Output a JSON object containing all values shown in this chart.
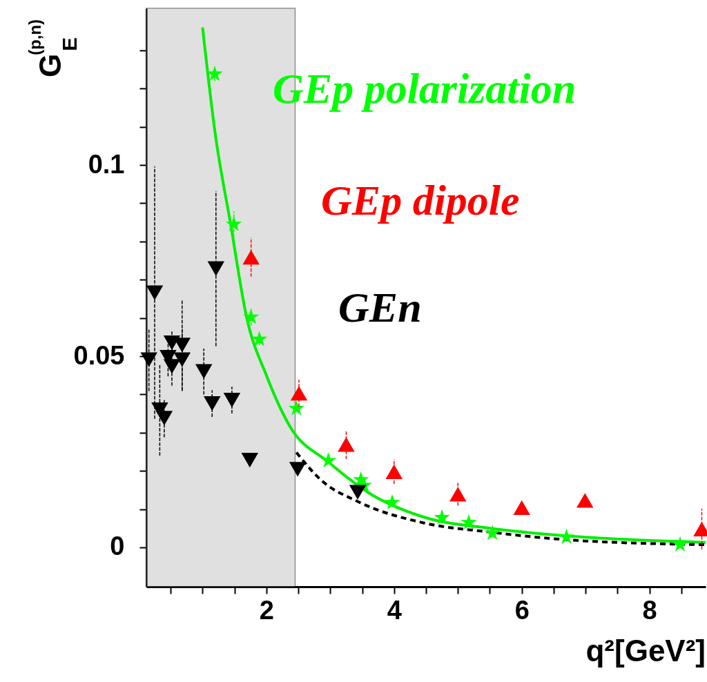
{
  "chart_data": {
    "type": "scatter",
    "xlabel": "q²[GeV²]",
    "ylabel": "G$_{E}$$^{(p,n)}$",
    "legend": "top",
    "grid": false,
    "xlim": [
      0.12,
      8.88
    ],
    "ylim": [
      -0.0103,
      0.141
    ],
    "xticks": [
      {
        "value": 0.5,
        "label": null
      },
      {
        "value": 1,
        "label": null
      },
      {
        "value": 1.5,
        "label": null
      },
      2,
      {
        "value": 2.5,
        "label": null
      },
      {
        "value": 3,
        "label": null
      },
      {
        "value": 3.5,
        "label": null
      },
      4,
      {
        "value": 4.5,
        "label": null
      },
      {
        "value": 5,
        "label": null
      },
      {
        "value": 5.5,
        "label": null
      },
      6,
      {
        "value": 6.5,
        "label": null
      },
      {
        "value": 7,
        "label": null
      },
      {
        "value": 7.5,
        "label": null
      },
      8,
      {
        "value": 8.5,
        "label": null
      }
    ],
    "yticks": [
      0,
      {
        "value": 0.01,
        "label": null
      },
      {
        "value": 0.02,
        "label": null
      },
      {
        "value": 0.03,
        "label": null
      },
      {
        "value": 0.04,
        "label": null
      },
      0.05,
      {
        "value": 0.06,
        "label": null
      },
      {
        "value": 0.07,
        "label": null
      },
      {
        "value": 0.08,
        "label": null
      },
      {
        "value": 0.09,
        "label": null
      },
      0.1,
      {
        "value": 0.11,
        "label": null
      },
      {
        "value": 0.12,
        "label": null
      },
      {
        "value": 0.13,
        "label": null
      }
    ],
    "bands": [
      {
        "axis": "x",
        "from": 0.12,
        "to": 2.45,
        "color": "#c8c8c8"
      }
    ],
    "series": [
      {
        "name": "GEp polarization",
        "marker": "star",
        "color": "#00ff00",
        "x": [
          1.19,
          1.49,
          1.76,
          1.89,
          2.47,
          2.97,
          3.48,
          3.53,
          3.97,
          4.75,
          5.17,
          5.54,
          6.7,
          8.48
        ],
        "values": [
          0.1238,
          0.0845,
          0.0602,
          0.0544,
          0.0363,
          0.0227,
          0.0177,
          0.0162,
          0.0117,
          0.0078,
          0.0065,
          0.0037,
          0.0027,
          0.0007
        ],
        "errors": [
          0.0019,
          0.0034,
          0.0022,
          0.0015,
          null,
          null,
          null,
          null,
          null,
          null,
          null,
          null,
          null,
          null
        ]
      },
      {
        "name": "GEp dipole",
        "marker": "triangle",
        "color": "#ff0000",
        "x": [
          1.76,
          2.51,
          3.25,
          4.0,
          5.0,
          6.0,
          6.99,
          8.82
        ],
        "values": [
          0.0759,
          0.0403,
          0.0269,
          0.0198,
          0.0139,
          0.0104,
          0.0123,
          0.0048
        ],
        "errors": [
          0.0051,
          0.0035,
          0.0038,
          0.0032,
          0.003,
          null,
          null,
          0.0053
        ]
      },
      {
        "name": "GEn",
        "marker": "triangle-down",
        "color": "#000000",
        "x": [
          0.16,
          0.25,
          0.33,
          0.4,
          0.46,
          0.52,
          0.52,
          0.68,
          0.68,
          1.02,
          1.15,
          1.21,
          1.46,
          1.74,
          2.49,
          3.43
        ],
        "values": [
          0.0491,
          0.0666,
          0.036,
          0.0338,
          0.0497,
          0.0535,
          0.0473,
          0.0529,
          0.0491,
          0.046,
          0.0376,
          0.0729,
          0.0385,
          0.0228,
          0.0204,
          0.0144
        ],
        "errors": [
          0.0082,
          0.033,
          0.012,
          0.005,
          0.005,
          0.003,
          0.005,
          0.012,
          0.008,
          0.006,
          0.0035,
          0.0203,
          0.0035,
          null,
          null,
          null
        ]
      },
      {
        "type": "line",
        "line_style": "solid",
        "color": "#00ee00",
        "x": [
          1.0,
          1.2,
          1.44,
          1.69,
          2.0,
          2.37,
          2.98,
          3.59,
          4.49,
          5.5,
          6.7,
          8.88
        ],
        "values": [
          0.136,
          0.108,
          0.0845,
          0.0602,
          0.045,
          0.0316,
          0.0222,
          0.0144,
          0.0078,
          0.005,
          0.003,
          0.0013
        ]
      },
      {
        "type": "line",
        "line_style": "dashed",
        "color": "#000000",
        "x": [
          2.47,
          2.87,
          3.43,
          4.49,
          5.5,
          6.7,
          8.88
        ],
        "values": [
          0.0248,
          0.0174,
          0.012,
          0.0063,
          0.004,
          0.002,
          0.0007
        ]
      }
    ]
  }
}
